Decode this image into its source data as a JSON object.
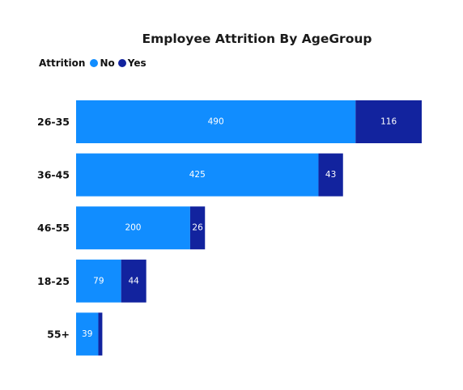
{
  "chart_data": {
    "type": "bar",
    "orientation": "horizontal",
    "stacked": true,
    "title": "Employee Attrition By AgeGroup",
    "categories": [
      "26-35",
      "36-45",
      "46-55",
      "18-25",
      "55+"
    ],
    "legend": {
      "title": "Attrition",
      "position": "top-left"
    },
    "series": [
      {
        "name": "No",
        "color": "#118DFF",
        "values": [
          490,
          425,
          200,
          79,
          39
        ]
      },
      {
        "name": "Yes",
        "color": "#12239E",
        "values": [
          116,
          43,
          26,
          44,
          7
        ]
      }
    ],
    "xlim": [
      0,
      606
    ],
    "data_labels": true,
    "grid": false,
    "axis_lines": false
  }
}
